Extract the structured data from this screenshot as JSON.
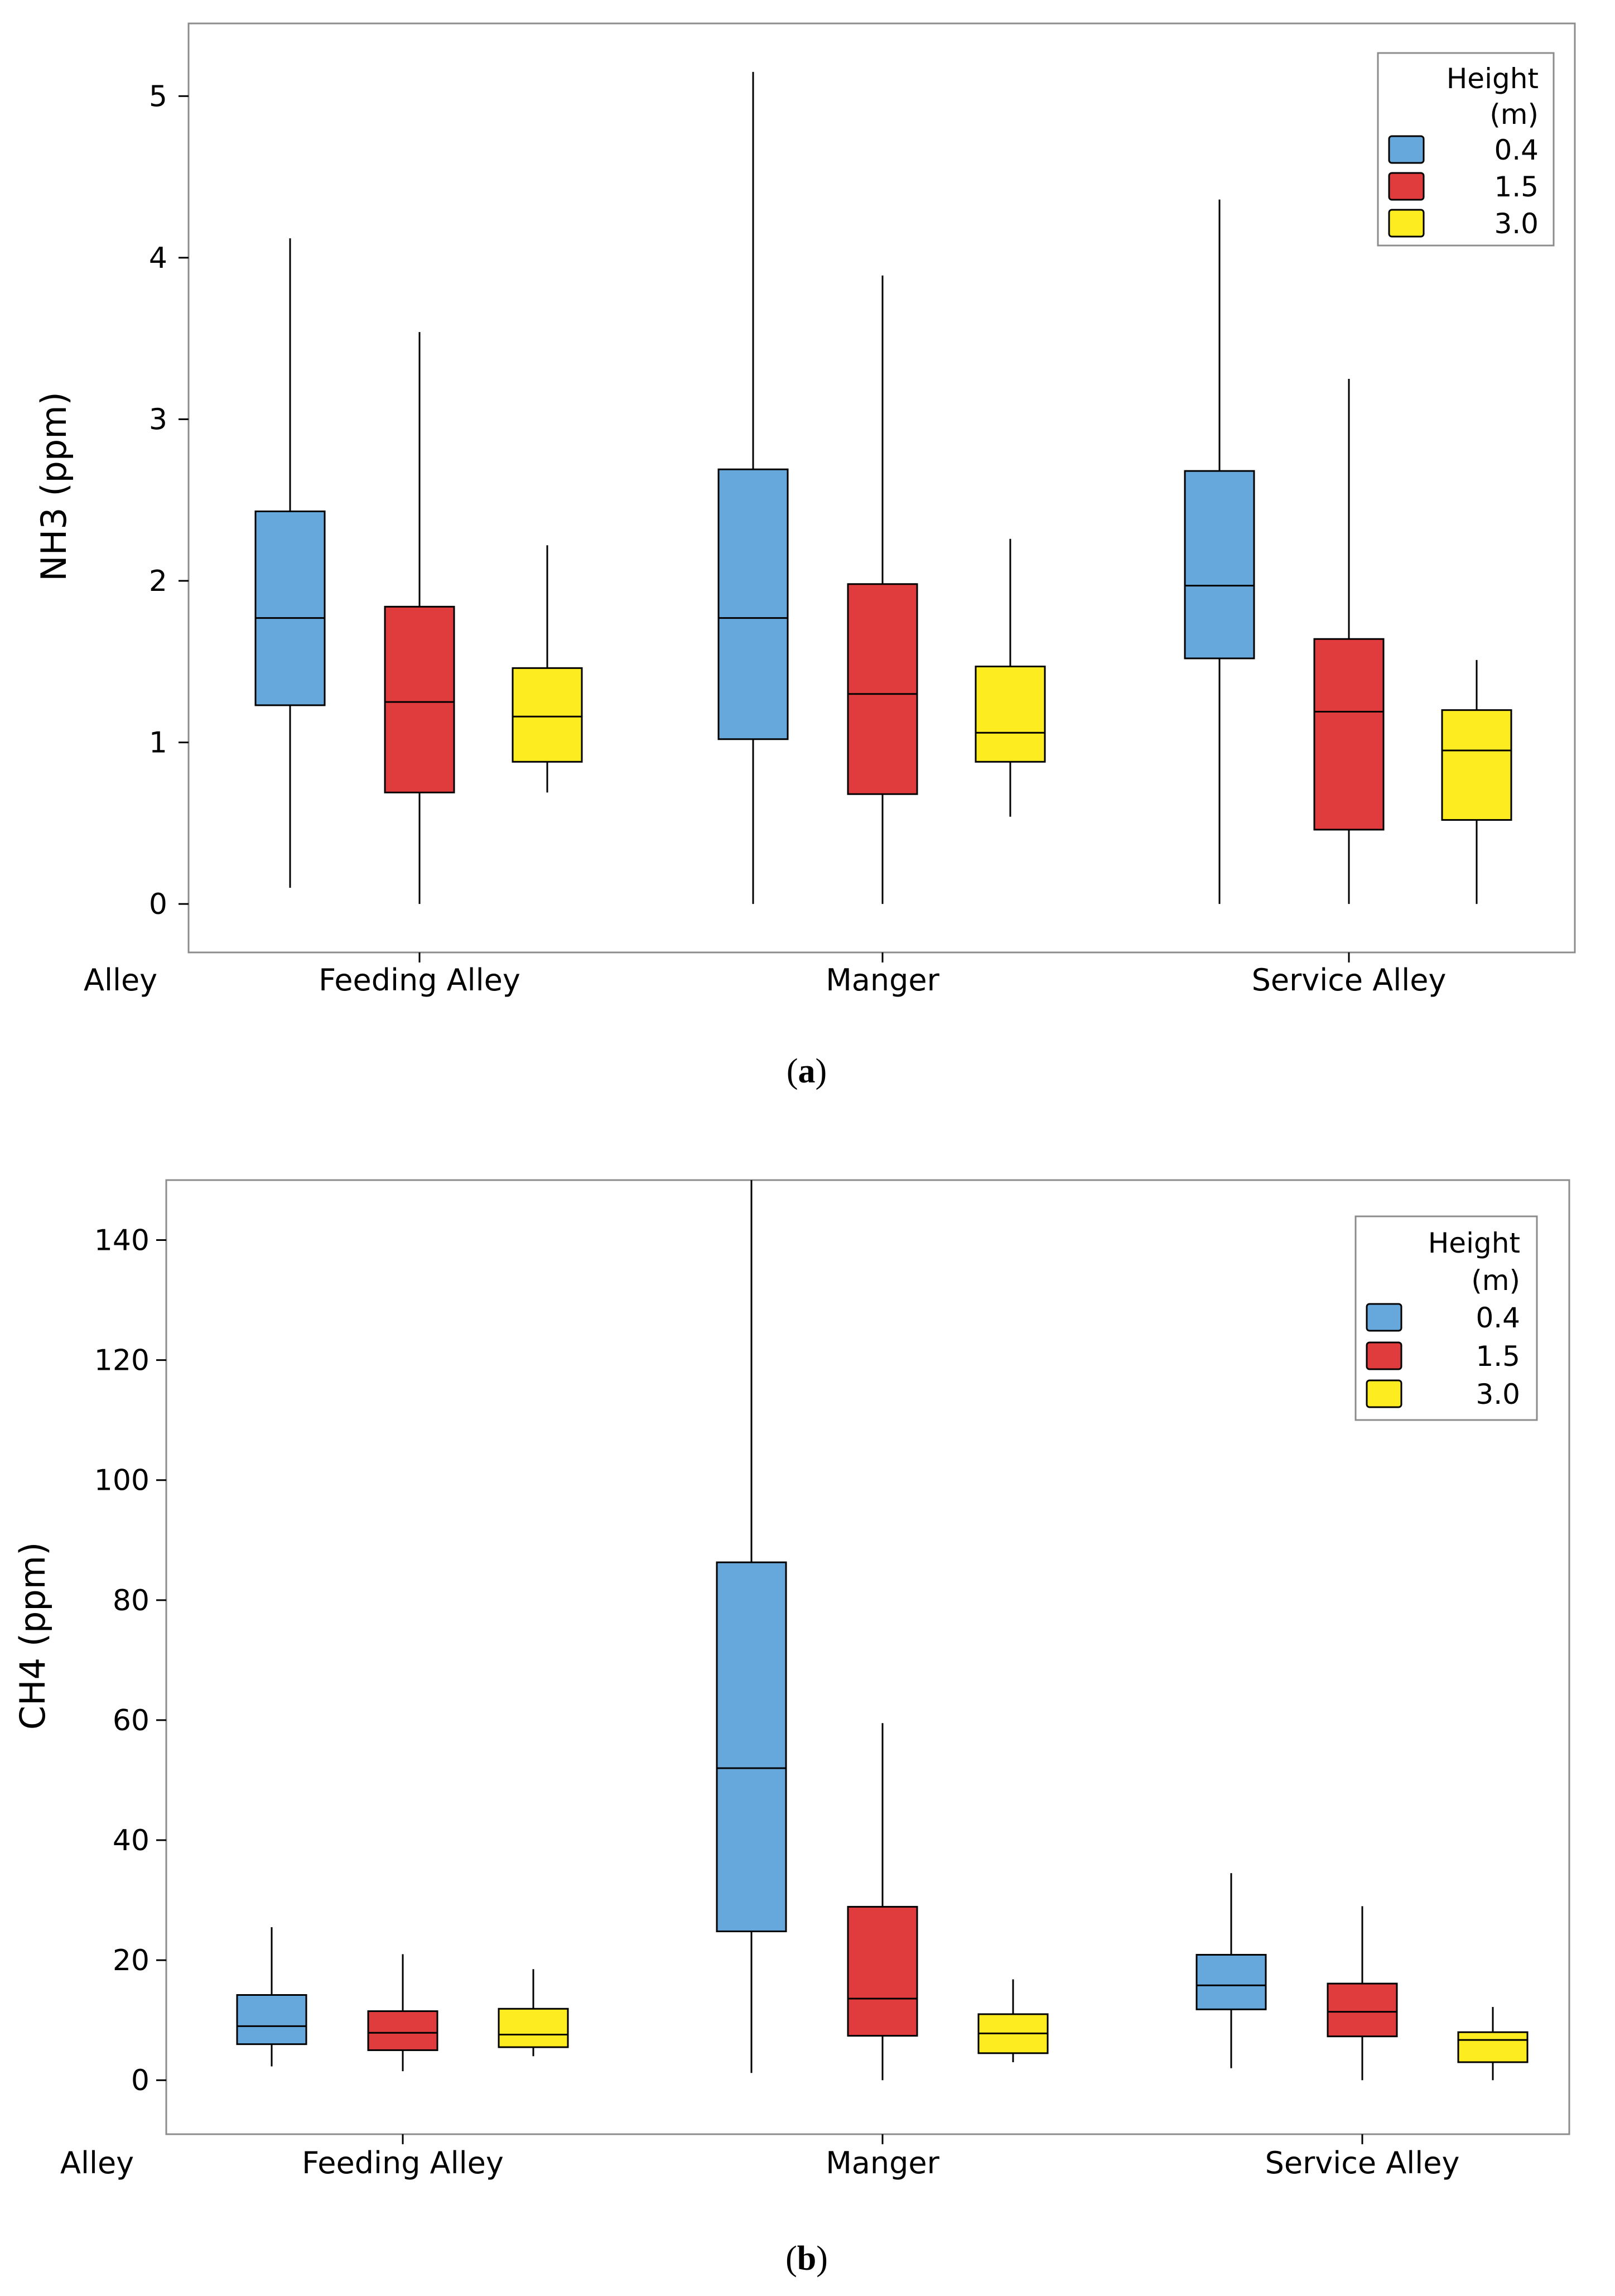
{
  "chart_data": [
    {
      "type": "box",
      "panel": "a",
      "caption": {
        "open": "(",
        "letter": "a",
        "close": ")"
      },
      "ylabel": "NH3 (ppm)",
      "xlabel": "Alley",
      "ylim": [
        -0.3,
        5.45
      ],
      "yticks": [
        0,
        1,
        2,
        3,
        4,
        5
      ],
      "categories": [
        "Feeding Alley",
        "Manger",
        "Service Alley"
      ],
      "legend": {
        "title_line1": "Height",
        "title_line2": "(m)",
        "position": "top-right"
      },
      "series": [
        {
          "name": "0.4",
          "color": "#67a8dc",
          "boxes": [
            {
              "min": 0.1,
              "q1": 1.23,
              "median": 1.77,
              "q3": 2.43,
              "max": 4.12
            },
            {
              "min": 0.0,
              "q1": 1.02,
              "median": 1.77,
              "q3": 2.69,
              "max": 5.15
            },
            {
              "min": 0.0,
              "q1": 1.52,
              "median": 1.97,
              "q3": 2.68,
              "max": 4.36
            }
          ]
        },
        {
          "name": "1.5",
          "color": "#e13c3d",
          "boxes": [
            {
              "min": 0.0,
              "q1": 0.69,
              "median": 1.25,
              "q3": 1.84,
              "max": 3.54
            },
            {
              "min": 0.0,
              "q1": 0.68,
              "median": 1.3,
              "q3": 1.98,
              "max": 3.89
            },
            {
              "min": 0.0,
              "q1": 0.46,
              "median": 1.19,
              "q3": 1.64,
              "max": 3.25
            }
          ]
        },
        {
          "name": "3.0",
          "color": "#fdec20",
          "boxes": [
            {
              "min": 0.69,
              "q1": 0.88,
              "median": 1.16,
              "q3": 1.46,
              "max": 2.22
            },
            {
              "min": 0.54,
              "q1": 0.88,
              "median": 1.06,
              "q3": 1.47,
              "max": 2.26
            },
            {
              "min": 0.0,
              "q1": 0.52,
              "median": 0.95,
              "q3": 1.2,
              "max": 1.51
            }
          ]
        }
      ]
    },
    {
      "type": "box",
      "panel": "b",
      "caption": {
        "open": "(",
        "letter": "b",
        "close": ")"
      },
      "ylabel": "CH4 (ppm)",
      "xlabel": "Alley",
      "ylim": [
        -9,
        150
      ],
      "yticks": [
        0,
        20,
        40,
        60,
        80,
        100,
        120,
        140
      ],
      "categories": [
        "Feeding Alley",
        "Manger",
        "Service Alley"
      ],
      "legend": {
        "title_line1": "Height",
        "title_line2": "(m)",
        "position": "top-right"
      },
      "series": [
        {
          "name": "0.4",
          "color": "#67a8dc",
          "boxes": [
            {
              "min": 2.3,
              "q1": 6.0,
              "median": 9.0,
              "q3": 14.2,
              "max": 25.5
            },
            {
              "min": 1.2,
              "q1": 24.8,
              "median": 52.0,
              "q3": 86.3,
              "max": 150
            },
            {
              "min": 2.0,
              "q1": 11.8,
              "median": 15.8,
              "q3": 20.9,
              "max": 34.5
            }
          ]
        },
        {
          "name": "1.5",
          "color": "#e13c3d",
          "boxes": [
            {
              "min": 1.5,
              "q1": 5.0,
              "median": 7.9,
              "q3": 11.5,
              "max": 21.0
            },
            {
              "min": 0.0,
              "q1": 7.4,
              "median": 13.6,
              "q3": 28.9,
              "max": 59.5
            },
            {
              "min": 0.0,
              "q1": 7.3,
              "median": 11.4,
              "q3": 16.1,
              "max": 29.0
            }
          ]
        },
        {
          "name": "3.0",
          "color": "#fdec20",
          "boxes": [
            {
              "min": 4.0,
              "q1": 5.5,
              "median": 7.6,
              "q3": 11.9,
              "max": 18.5
            },
            {
              "min": 3.0,
              "q1": 4.5,
              "median": 7.8,
              "q3": 11.0,
              "max": 16.8
            },
            {
              "min": 0.0,
              "q1": 3.0,
              "median": 6.7,
              "q3": 8.0,
              "max": 12.2
            }
          ]
        }
      ]
    }
  ]
}
